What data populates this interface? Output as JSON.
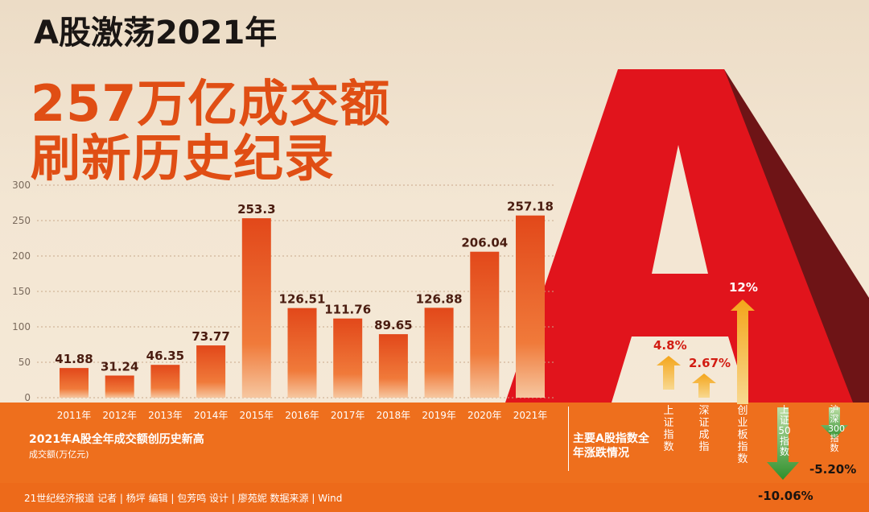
{
  "headline": {
    "line1": "A股激荡2021年",
    "line2": "257万亿成交额",
    "line3": "刷新历史纪录"
  },
  "colors": {
    "accent_orange": "#ee6f1d",
    "headline_orange": "#e04e14",
    "letter_red": "#e1141c",
    "letter_dark": "#6a1214",
    "up_arrow": "#f4a71d",
    "down_arrow": "#2e8b2e"
  },
  "chart_data": {
    "type": "bar",
    "title": "2021年A股全年成交额创历史新高",
    "ylabel": "成交额(万亿元)",
    "categories": [
      "2011年",
      "2012年",
      "2013年",
      "2014年",
      "2015年",
      "2016年",
      "2017年",
      "2018年",
      "2019年",
      "2020年",
      "2021年"
    ],
    "values": [
      41.88,
      31.24,
      46.35,
      73.77,
      253.3,
      126.51,
      111.76,
      89.65,
      126.88,
      206.04,
      257.18
    ],
    "value_labels": [
      "41.88",
      "31.24",
      "46.35",
      "73.77",
      "253.3",
      "126.51",
      "111.76",
      "89.65",
      "126.88",
      "206.04",
      "257.18"
    ],
    "ylim": [
      0,
      300
    ],
    "yticks": [
      0,
      50,
      100,
      150,
      200,
      250,
      300
    ],
    "grid": true
  },
  "index_panel": {
    "heading": "主要A股指数全年涨跌情况",
    "indices": [
      {
        "name": "上证指数",
        "change": 4.8,
        "label": "4.8%"
      },
      {
        "name": "深证成指",
        "change": 2.67,
        "label": "2.67%"
      },
      {
        "name": "创业板指数",
        "change": 12,
        "label": "12%"
      },
      {
        "name": "上证50指数",
        "change": -10.06,
        "label": "-10.06%"
      },
      {
        "name": "沪深300指数",
        "change": -5.2,
        "label": "-5.20%"
      }
    ]
  },
  "credits": "21世纪经济报道  记者 | 杨坪  编辑 | 包芳鸣  设计 | 廖苑妮  数据来源 | Wind"
}
